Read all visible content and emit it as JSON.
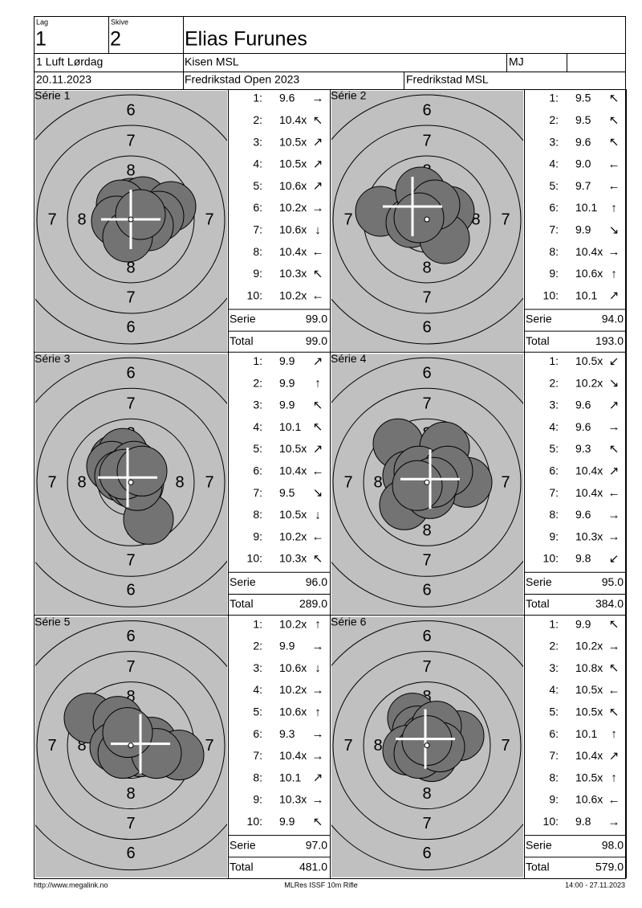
{
  "header": {
    "lag_label": "Lag",
    "lag": "1",
    "skive_label": "Skive",
    "skive": "2",
    "name": "Elias Furunes",
    "class": "1 Luft Lørdag",
    "club": "Kisen MSL",
    "class_code": "MJ",
    "date": "20.11.2023",
    "event": "Fredrikstad Open 2023",
    "venue": "Fredrikstad MSL"
  },
  "labels": {
    "serie": "Serie",
    "total": "Total"
  },
  "target": {
    "ring_6": "6",
    "ring_7": "7",
    "ring_8": "8"
  },
  "series": [
    {
      "title": "Série 1",
      "shots": [
        {
          "n": "1:",
          "score": "9.6",
          "dir": "→"
        },
        {
          "n": "2:",
          "score": "10.4x",
          "dir": "↖"
        },
        {
          "n": "3:",
          "score": "10.5x",
          "dir": "↗"
        },
        {
          "n": "4:",
          "score": "10.5x",
          "dir": "↗"
        },
        {
          "n": "5:",
          "score": "10.6x",
          "dir": "↗"
        },
        {
          "n": "6:",
          "score": "10.2x",
          "dir": "→"
        },
        {
          "n": "7:",
          "score": "10.6x",
          "dir": "↓"
        },
        {
          "n": "8:",
          "score": "10.4x",
          "dir": "←"
        },
        {
          "n": "9:",
          "score": "10.3x",
          "dir": "↖"
        },
        {
          "n": "10:",
          "score": "10.2x",
          "dir": "←"
        }
      ],
      "serie": "99.0",
      "total": "99.0"
    },
    {
      "title": "Série 2",
      "shots": [
        {
          "n": "1:",
          "score": "9.5",
          "dir": "↖"
        },
        {
          "n": "2:",
          "score": "9.5",
          "dir": "↖"
        },
        {
          "n": "3:",
          "score": "9.6",
          "dir": "↖"
        },
        {
          "n": "4:",
          "score": "9.0",
          "dir": "←"
        },
        {
          "n": "5:",
          "score": "9.7",
          "dir": "←"
        },
        {
          "n": "6:",
          "score": "10.1",
          "dir": "↑"
        },
        {
          "n": "7:",
          "score": "9.9",
          "dir": "↘"
        },
        {
          "n": "8:",
          "score": "10.4x",
          "dir": "→"
        },
        {
          "n": "9:",
          "score": "10.6x",
          "dir": "↑"
        },
        {
          "n": "10:",
          "score": "10.1",
          "dir": "↗"
        }
      ],
      "serie": "94.0",
      "total": "193.0"
    },
    {
      "title": "Série 3",
      "shots": [
        {
          "n": "1:",
          "score": "9.9",
          "dir": "↗"
        },
        {
          "n": "2:",
          "score": "9.9",
          "dir": "↑"
        },
        {
          "n": "3:",
          "score": "9.9",
          "dir": "↖"
        },
        {
          "n": "4:",
          "score": "10.1",
          "dir": "↖"
        },
        {
          "n": "5:",
          "score": "10.5x",
          "dir": "↗"
        },
        {
          "n": "6:",
          "score": "10.4x",
          "dir": "←"
        },
        {
          "n": "7:",
          "score": "9.5",
          "dir": "↘"
        },
        {
          "n": "8:",
          "score": "10.5x",
          "dir": "↓"
        },
        {
          "n": "9:",
          "score": "10.2x",
          "dir": "←"
        },
        {
          "n": "10:",
          "score": "10.3x",
          "dir": "↖"
        }
      ],
      "serie": "96.0",
      "total": "289.0"
    },
    {
      "title": "Série 4",
      "shots": [
        {
          "n": "1:",
          "score": "10.5x",
          "dir": "↙"
        },
        {
          "n": "2:",
          "score": "10.2x",
          "dir": "↘"
        },
        {
          "n": "3:",
          "score": "9.6",
          "dir": "↗"
        },
        {
          "n": "4:",
          "score": "9.6",
          "dir": "→"
        },
        {
          "n": "5:",
          "score": "9.3",
          "dir": "↖"
        },
        {
          "n": "6:",
          "score": "10.4x",
          "dir": "↗"
        },
        {
          "n": "7:",
          "score": "10.4x",
          "dir": "←"
        },
        {
          "n": "8:",
          "score": "9.6",
          "dir": "→"
        },
        {
          "n": "9:",
          "score": "10.3x",
          "dir": "→"
        },
        {
          "n": "10:",
          "score": "9.8",
          "dir": "↙"
        }
      ],
      "serie": "95.0",
      "total": "384.0"
    },
    {
      "title": "Série 5",
      "shots": [
        {
          "n": "1:",
          "score": "10.2x",
          "dir": "↑"
        },
        {
          "n": "2:",
          "score": "9.9",
          "dir": "→"
        },
        {
          "n": "3:",
          "score": "10.6x",
          "dir": "↓"
        },
        {
          "n": "4:",
          "score": "10.2x",
          "dir": "→"
        },
        {
          "n": "5:",
          "score": "10.6x",
          "dir": "↑"
        },
        {
          "n": "6:",
          "score": "9.3",
          "dir": "→"
        },
        {
          "n": "7:",
          "score": "10.4x",
          "dir": "→"
        },
        {
          "n": "8:",
          "score": "10.1",
          "dir": "↗"
        },
        {
          "n": "9:",
          "score": "10.3x",
          "dir": "→"
        },
        {
          "n": "10:",
          "score": "9.9",
          "dir": "↖"
        }
      ],
      "serie": "97.0",
      "total": "481.0"
    },
    {
      "title": "Série 6",
      "shots": [
        {
          "n": "1:",
          "score": "9.9",
          "dir": "↖"
        },
        {
          "n": "2:",
          "score": "10.2x",
          "dir": "→"
        },
        {
          "n": "3:",
          "score": "10.8x",
          "dir": "↖"
        },
        {
          "n": "4:",
          "score": "10.5x",
          "dir": "←"
        },
        {
          "n": "5:",
          "score": "10.5x",
          "dir": "↖"
        },
        {
          "n": "6:",
          "score": "10.1",
          "dir": "↑"
        },
        {
          "n": "7:",
          "score": "10.4x",
          "dir": "↗"
        },
        {
          "n": "8:",
          "score": "10.5x",
          "dir": "↑"
        },
        {
          "n": "9:",
          "score": "10.6x",
          "dir": "←"
        },
        {
          "n": "10:",
          "score": "9.8",
          "dir": "→"
        }
      ],
      "serie": "98.0",
      "total": "579.0"
    }
  ],
  "footer": {
    "url": "http://www.megalink.no",
    "program": "MLRes ISSF 10m Rifle",
    "timestamp": "14:00 - 27.11.2023"
  }
}
